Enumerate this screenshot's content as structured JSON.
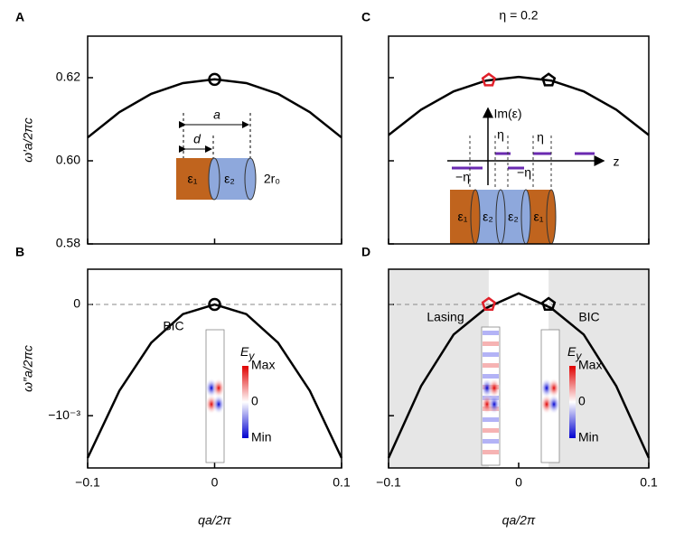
{
  "chart_data": [
    {
      "type": "line",
      "panel": "A",
      "ylabel": "ω′a/2πc",
      "x": [
        -0.1,
        -0.075,
        -0.05,
        -0.025,
        0,
        0.025,
        0.05,
        0.075,
        0.1
      ],
      "values": [
        0.6056,
        0.6117,
        0.6161,
        0.6187,
        0.6196,
        0.6187,
        0.6161,
        0.6117,
        0.6056
      ],
      "color": "#000000",
      "xlim": [
        -0.1,
        0.1
      ],
      "xticks": [
        -0.1,
        0,
        0.1
      ],
      "xtick_labels": false,
      "ylim": [
        0.58,
        0.63
      ],
      "yticks": [
        0.58,
        {
          "value": 0.6,
          "label": "0.60"
        },
        0.62
      ],
      "ytick_labels": true,
      "points": [
        {
          "x": 0,
          "y": 0.6196,
          "color": "#000000",
          "shape": "circle"
        }
      ],
      "labels": [
        "a",
        "d",
        "ε₁",
        "ε₂",
        "2r₀"
      ]
    },
    {
      "type": "line",
      "panel": "B",
      "ylabel": "ω″a/2πc",
      "xlabel": "qa/2π",
      "x": [
        -0.1,
        -0.075,
        -0.05,
        -0.025,
        0,
        0.025,
        0.05,
        0.075,
        0.1
      ],
      "values": [
        -0.00138,
        -0.000776,
        -0.000345,
        -8.63e-05,
        0,
        -8.63e-05,
        -0.000345,
        -0.000776,
        -0.00138
      ],
      "color": "#000000",
      "xlim": [
        -0.1,
        0.1
      ],
      "xticks": [
        {
          "value": -0.1,
          "label": "−0.1"
        },
        0,
        0.1
      ],
      "xtick_labels": true,
      "ylim": [
        -0.00147,
        0.000317
      ],
      "yticks": [
        {
          "value": -0.001,
          "label": "−10⁻³"
        },
        0
      ],
      "ytick_labels": true,
      "reference_line": 0,
      "points": [
        {
          "x": 0,
          "y": 0,
          "color": "#000000",
          "shape": "circle"
        }
      ],
      "labels": [
        "BIC"
      ],
      "colorbar": {
        "title": "E",
        "sub": "y",
        "ticks": [
          "Max",
          "0",
          "Min"
        ]
      }
    },
    {
      "type": "line",
      "panel": "C",
      "title": "η = 0.2",
      "x": [
        -0.1,
        -0.075,
        -0.05,
        -0.025,
        0,
        0.025,
        0.05,
        0.075,
        0.1
      ],
      "values": [
        0.6062,
        0.6123,
        0.6167,
        0.6193,
        0.6202,
        0.6193,
        0.6167,
        0.6123,
        0.6062
      ],
      "color": "#000000",
      "xlim": [
        -0.1,
        0.1
      ],
      "xticks": [
        -0.1,
        0,
        0.1
      ],
      "xtick_labels": false,
      "ylim": [
        0.58,
        0.63
      ],
      "yticks": [
        0.58,
        0.6,
        0.62
      ],
      "ytick_labels": false,
      "points": [
        {
          "x": -0.023,
          "y": 0.6194,
          "color": "#e0202a",
          "shape": "pentagon"
        },
        {
          "x": 0.023,
          "y": 0.6194,
          "color": "#000000",
          "shape": "pentagon"
        }
      ],
      "labels": [
        "Im(ε)",
        "η",
        "η",
        "−η",
        "−η",
        "z",
        "ε₁",
        "ε₂",
        "ε₂",
        "ε₁"
      ]
    },
    {
      "type": "line",
      "panel": "D",
      "xlabel": "qa/2π",
      "x": [
        -0.1,
        -0.075,
        -0.05,
        -0.025,
        0,
        0.025,
        0.05,
        0.075,
        0.1
      ],
      "values": [
        -0.00138,
        -0.000733,
        -0.00027,
        -3.25e-05,
        0.0001,
        -3.25e-05,
        -0.00027,
        -0.000733,
        -0.00138
      ],
      "color": "#000000",
      "xlim": [
        -0.1,
        0.1
      ],
      "xticks": [
        {
          "value": -0.1,
          "label": "−0.1"
        },
        0,
        0.1
      ],
      "xtick_labels": true,
      "ylim": [
        -0.00147,
        0.000317
      ],
      "yticks": [
        -0.001,
        0
      ],
      "ytick_labels": false,
      "reference_line": 0,
      "shaded": [
        [
          -0.1,
          -0.023
        ],
        [
          0.023,
          0.1
        ]
      ],
      "points": [
        {
          "x": -0.023,
          "y": 0,
          "color": "#e0202a",
          "shape": "pentagon"
        },
        {
          "x": 0.023,
          "y": 0,
          "color": "#000000",
          "shape": "pentagon"
        }
      ],
      "labels": [
        "Lasing",
        "BIC"
      ],
      "colorbar": {
        "title": "E",
        "sub": "y",
        "ticks": [
          "Max",
          "0",
          "Min"
        ]
      }
    }
  ]
}
